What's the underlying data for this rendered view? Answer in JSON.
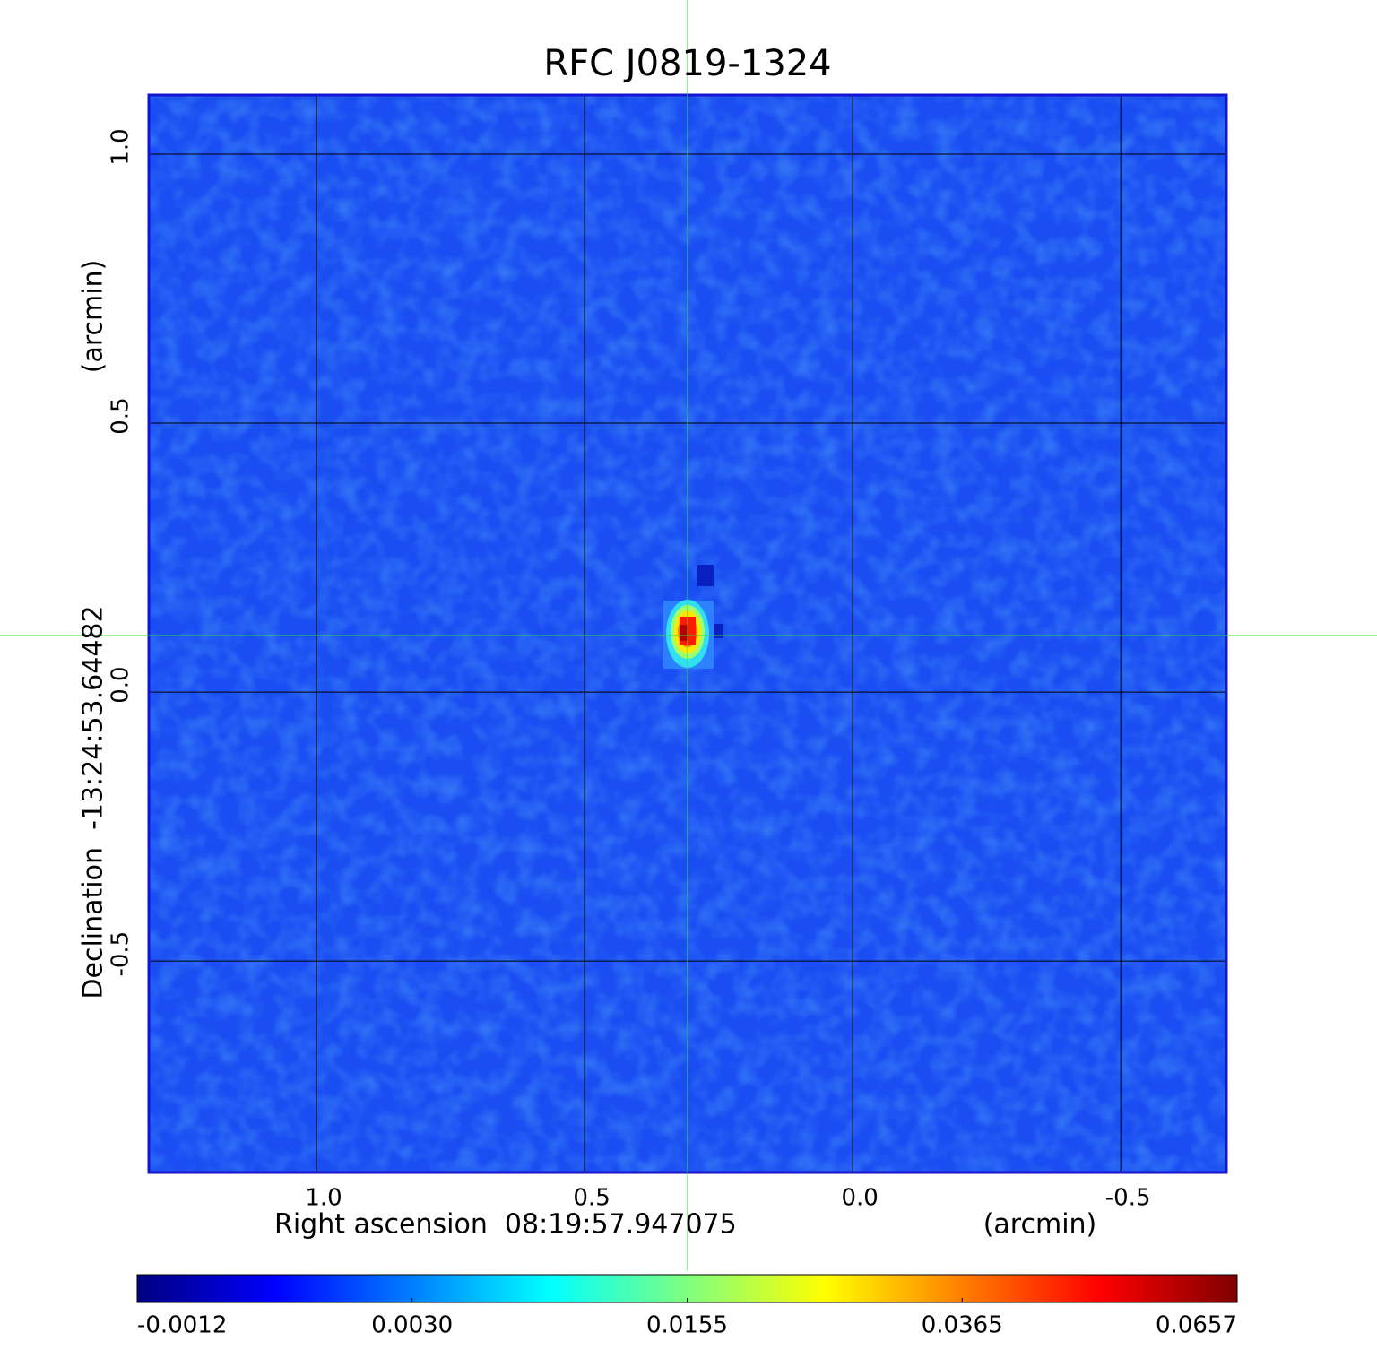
{
  "chart_data": {
    "type": "image",
    "title": "RFC J0819-1324",
    "title_color": "#1414d2",
    "x_label": "Right ascension  08:19:57.947075",
    "x_unit": "(arcmin)",
    "y_label": "Declination  -13:24:53.64482",
    "y_unit": "(arcmin)",
    "xlim": [
      1.3127,
      -0.697
    ],
    "xticks": [
      {
        "value": 1,
        "label": "1.0"
      },
      0.5,
      {
        "value": 0,
        "label": "0.0"
      },
      -0.5
    ],
    "ylim": [
      -0.893,
      1.11
    ],
    "yticks": [
      -0.5,
      {
        "value": 0,
        "label": "0.0"
      },
      0.5,
      {
        "value": 1,
        "label": "1.0"
      }
    ],
    "grid": true,
    "colormap": "jet",
    "colorbar": {
      "ticks": [
        -0.0012,
        {
          "value": 0.003,
          "label": "0.0030"
        },
        0.0155,
        0.0365,
        0.0657
      ]
    }
  }
}
